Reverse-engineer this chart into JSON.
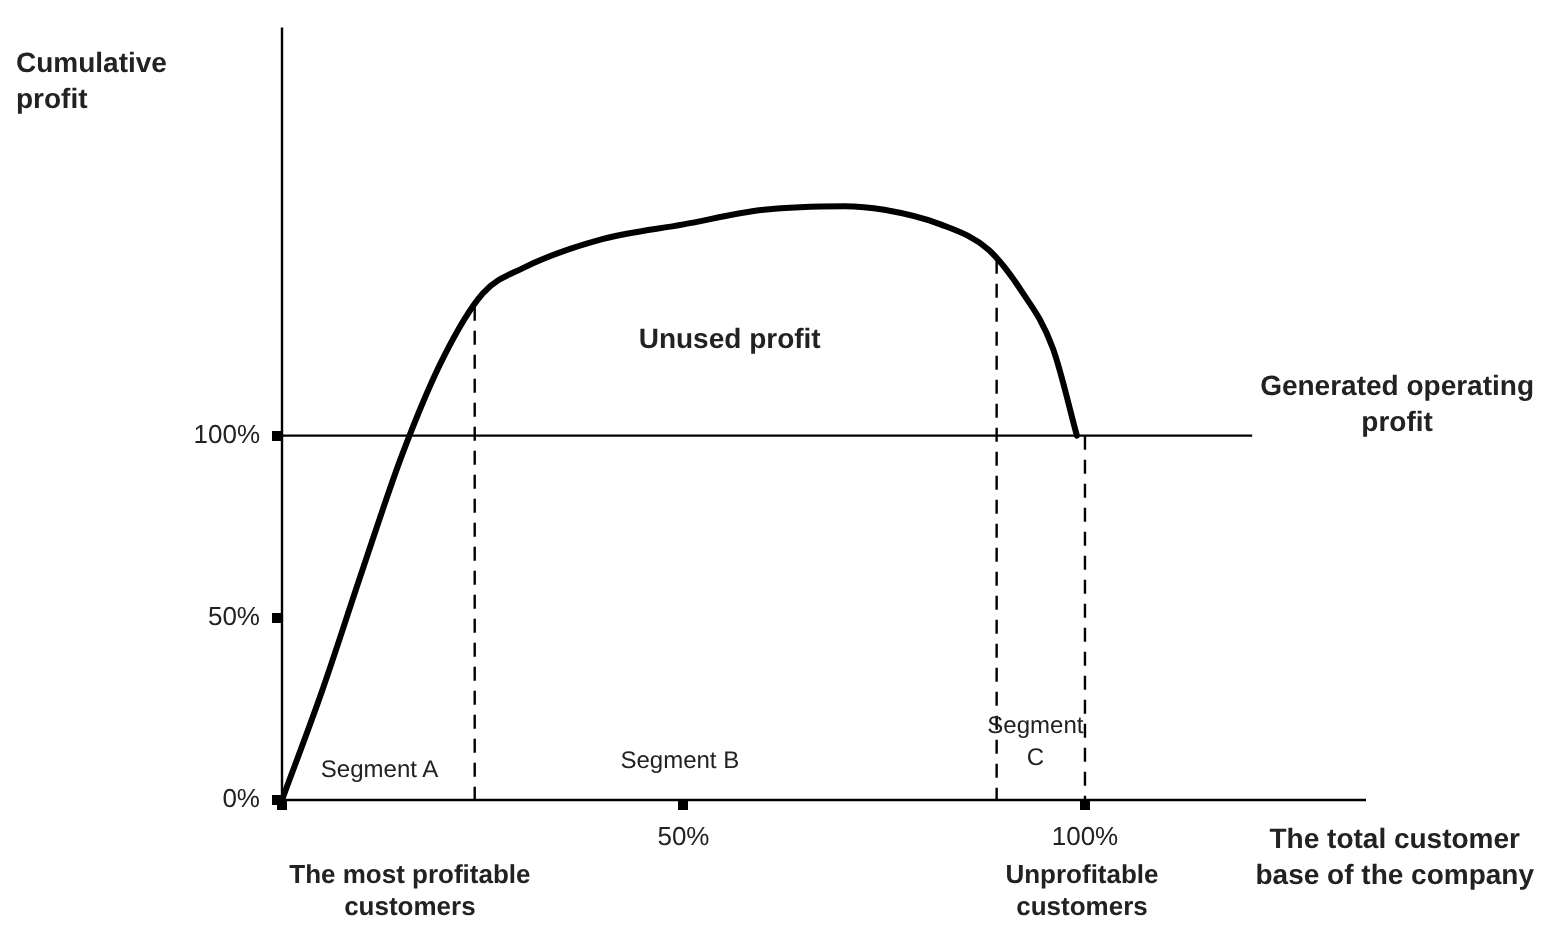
{
  "chart_data": {
    "type": "line",
    "xlabel": "The total customer base of the company",
    "ylabel": "Cumulative profit",
    "x": [
      0,
      5,
      10,
      15,
      20,
      25,
      30,
      40,
      50,
      60,
      70,
      75,
      82,
      88,
      92,
      96,
      99
    ],
    "series": [
      {
        "color": "#000000",
        "values": [
          0,
          30,
          63,
          95,
          121,
          139,
          146,
          154,
          158,
          162,
          163,
          162,
          158,
          151,
          140,
          124,
          100
        ]
      }
    ],
    "xlim": [
      0,
      135
    ],
    "ylim": [
      0,
      212
    ],
    "xticks": [
      {
        "value": 0,
        "label": null
      },
      {
        "value": 50,
        "label": "50%"
      },
      {
        "value": 100,
        "label": "100%"
      }
    ],
    "yticks": [
      {
        "value": 0,
        "label": "0%"
      },
      {
        "value": 50,
        "label": "50%"
      },
      {
        "value": 100,
        "label": "100%"
      }
    ],
    "ref_lines": [
      {
        "axis": "y",
        "value": 100,
        "label": "Generated operating profit",
        "color": "#000000",
        "line_style": "solid"
      },
      {
        "axis": "x",
        "value": 24,
        "color": "#000000",
        "line_style": "dashed"
      },
      {
        "axis": "x",
        "value": 89,
        "color": "#000000",
        "line_style": "dashed"
      },
      {
        "axis": "x",
        "value": 100,
        "color": "#000000",
        "line_style": "dashed"
      }
    ],
    "annotations": [
      "Unused profit",
      "Segment A",
      "Segment B",
      "Segment C",
      "The most profitable customers",
      "Unprofitable customers"
    ],
    "grid": false,
    "legend": false,
    "marker": "none",
    "line_style": "solid"
  }
}
